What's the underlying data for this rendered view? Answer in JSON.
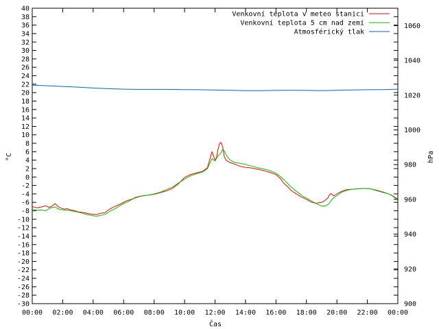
{
  "chart_data": {
    "type": "line",
    "title": "",
    "xlabel": "Čas",
    "ylabel": "°C",
    "y2label": "hPa",
    "xlim": [
      0,
      24
    ],
    "ylim": [
      -30,
      40
    ],
    "y2lim": [
      900,
      1070
    ],
    "grid": false,
    "legend_position": "top-right",
    "x_tick_labels": [
      "00:00",
      "02:00",
      "04:00",
      "06:00",
      "08:00",
      "10:00",
      "12:00",
      "14:00",
      "16:00",
      "18:00",
      "20:00",
      "22:00",
      "00:00"
    ],
    "y_ticks": [
      40,
      38,
      36,
      34,
      32,
      30,
      28,
      26,
      24,
      22,
      20,
      18,
      16,
      14,
      12,
      10,
      8,
      6,
      4,
      2,
      0,
      -2,
      -4,
      -6,
      -8,
      -10,
      -12,
      -14,
      -16,
      -18,
      -20,
      -22,
      -24,
      -26,
      -28,
      -30
    ],
    "y2_ticks": [
      1060,
      1040,
      1020,
      1000,
      980,
      960,
      940,
      920,
      900
    ],
    "series": [
      {
        "name": "Venkovní teplota v meteo stanici",
        "color": "#ff0000",
        "axis": "left",
        "x": [
          0,
          0.3,
          0.6,
          0.9,
          1.1,
          1.3,
          1.5,
          1.7,
          1.9,
          2.1,
          2.3,
          2.5,
          2.7,
          2.9,
          3.1,
          3.3,
          3.5,
          3.7,
          4.0,
          4.2,
          4.5,
          4.8,
          5.0,
          5.3,
          5.6,
          5.9,
          6.2,
          6.5,
          6.8,
          7.0,
          7.3,
          7.6,
          8.0,
          8.4,
          8.8,
          9.2,
          9.6,
          10.0,
          10.4,
          10.8,
          11.2,
          11.5,
          11.8,
          12.0,
          12.1,
          12.2,
          12.3,
          12.4,
          12.5,
          12.6,
          12.7,
          12.8,
          12.9,
          13.0,
          13.2,
          13.4,
          13.6,
          13.8,
          14.0,
          14.3,
          14.6,
          15.0,
          15.3,
          15.6,
          16.0,
          16.3,
          16.5,
          16.8,
          17.0,
          17.3,
          17.6,
          18.0,
          18.3,
          18.6,
          19.0,
          19.2,
          19.4,
          19.5,
          19.6,
          19.8,
          20.0,
          20.3,
          20.6,
          21.0,
          21.4,
          21.8,
          22.2,
          22.6,
          23.0,
          23.3,
          23.6,
          23.8,
          24.0
        ],
        "y": [
          -7,
          -7.3,
          -7.1,
          -6.8,
          -7.2,
          -6.9,
          -6.3,
          -7.0,
          -7.4,
          -7.6,
          -7.5,
          -7.8,
          -7.9,
          -8.1,
          -8.3,
          -8.4,
          -8.5,
          -8.7,
          -8.8,
          -8.9,
          -8.6,
          -8.4,
          -7.8,
          -7.2,
          -6.7,
          -6.2,
          -5.6,
          -5.3,
          -4.8,
          -4.6,
          -4.4,
          -4.3,
          -4.1,
          -3.7,
          -3.3,
          -2.7,
          -1.6,
          -0.1,
          0.6,
          1.0,
          1.4,
          2.2,
          6.0,
          4.0,
          4.6,
          6.6,
          8.0,
          8.2,
          7.2,
          5.0,
          4.1,
          3.8,
          3.6,
          3.4,
          3.2,
          2.9,
          2.6,
          2.4,
          2.3,
          2.2,
          2.0,
          1.7,
          1.4,
          1.1,
          0.6,
          -0.4,
          -1.4,
          -2.4,
          -3.2,
          -3.9,
          -4.6,
          -5.3,
          -5.9,
          -6.2,
          -6.0,
          -5.6,
          -5.0,
          -4.3,
          -3.9,
          -4.5,
          -4.0,
          -3.4,
          -3.0,
          -2.9,
          -2.8,
          -2.7,
          -2.8,
          -3.2,
          -3.6,
          -3.9,
          -4.3,
          -4.8,
          -5.2
        ]
      },
      {
        "name": "Venkovní teplota 5 cm nad zemí",
        "color": "#00c000",
        "axis": "left",
        "x": [
          0,
          0.3,
          0.6,
          0.9,
          1.2,
          1.5,
          1.8,
          2.1,
          2.4,
          2.7,
          3.0,
          3.3,
          3.6,
          3.9,
          4.2,
          4.5,
          4.8,
          5.1,
          5.4,
          5.7,
          6.0,
          6.3,
          6.6,
          6.9,
          7.2,
          7.6,
          8.0,
          8.4,
          8.8,
          9.2,
          9.6,
          10.0,
          10.4,
          10.8,
          11.2,
          11.5,
          11.8,
          12.0,
          12.2,
          12.4,
          12.5,
          12.6,
          12.8,
          13.0,
          13.2,
          13.4,
          13.7,
          14.0,
          14.4,
          14.8,
          15.2,
          15.6,
          16.0,
          16.3,
          16.6,
          16.9,
          17.2,
          17.5,
          17.8,
          18.1,
          18.4,
          18.7,
          19.0,
          19.3,
          19.5,
          19.7,
          20.0,
          20.3,
          20.7,
          21.0,
          21.4,
          21.8,
          22.2,
          22.6,
          23.0,
          23.4,
          23.7,
          24.0
        ],
        "y": [
          -7.6,
          -7.9,
          -7.8,
          -8.0,
          -7.3,
          -7.1,
          -7.7,
          -7.8,
          -7.9,
          -8.1,
          -8.3,
          -8.6,
          -8.9,
          -9.1,
          -9.3,
          -9.1,
          -8.8,
          -8.1,
          -7.6,
          -6.9,
          -6.3,
          -5.8,
          -5.2,
          -4.8,
          -4.5,
          -4.3,
          -4.0,
          -3.6,
          -3.0,
          -2.4,
          -1.4,
          -0.5,
          0.3,
          0.8,
          1.2,
          2.0,
          4.4,
          3.8,
          5.0,
          5.8,
          6.6,
          6.2,
          4.8,
          4.0,
          3.6,
          3.4,
          3.2,
          3.0,
          2.6,
          2.2,
          1.9,
          1.5,
          0.9,
          0.1,
          -0.9,
          -2.0,
          -3.0,
          -3.8,
          -4.6,
          -5.2,
          -5.8,
          -6.4,
          -6.9,
          -6.8,
          -6.2,
          -5.2,
          -4.4,
          -3.6,
          -3.1,
          -2.9,
          -2.8,
          -2.7,
          -2.8,
          -3.1,
          -3.5,
          -4.0,
          -4.6,
          -5.6
        ]
      },
      {
        "name": "Atmosférický tlak",
        "color": "#0066cc",
        "axis": "right",
        "x": [
          0,
          1,
          2,
          3,
          4,
          5,
          6,
          7,
          8,
          9,
          10,
          11,
          12,
          13,
          14,
          15,
          16,
          17,
          18,
          19,
          20,
          21,
          22,
          23,
          24
        ],
        "y": [
          1025.7,
          1025.4,
          1025.0,
          1024.6,
          1024.1,
          1023.7,
          1023.4,
          1023.3,
          1023.3,
          1023.3,
          1023.2,
          1023.1,
          1022.9,
          1022.8,
          1022.6,
          1022.6,
          1022.7,
          1022.8,
          1022.7,
          1022.6,
          1022.8,
          1023.0,
          1023.1,
          1023.2,
          1023.4
        ]
      }
    ]
  }
}
